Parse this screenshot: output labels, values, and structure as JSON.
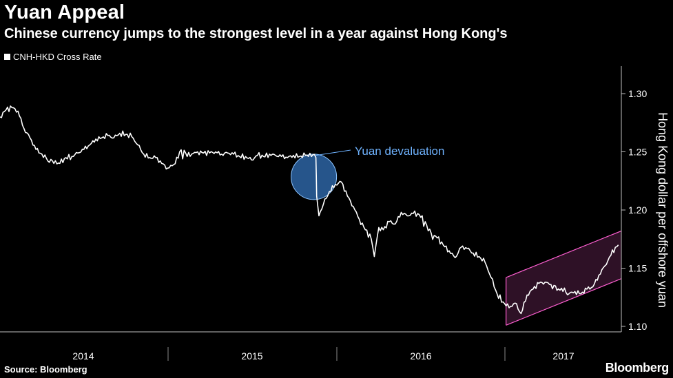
{
  "header": {
    "title": "Yuan Appeal",
    "subtitle": "Chinese currency jumps to the strongest level in a year against Hong Kong's"
  },
  "legend": {
    "label": "CNH-HKD Cross Rate"
  },
  "footer": {
    "source": "Source: Bloomberg",
    "brand": "Bloomberg"
  },
  "chart_data": {
    "type": "line",
    "title": "Yuan Appeal",
    "subtitle": "Chinese currency jumps to the strongest level in a year against Hong Kong's",
    "ylabel": "Hong Kong dollar per offshore yuan",
    "ylim": [
      1.1,
      1.3
    ],
    "yticks": [
      "1.30",
      "1.25",
      "1.20",
      "1.15",
      "1.10"
    ],
    "x_categories": [
      "2014",
      "2015",
      "2016",
      "2017"
    ],
    "xlim": [
      2013.5,
      2017.65
    ],
    "grid": false,
    "legend_position": "top-left",
    "colors": {
      "line": "#ffffff",
      "annotation": "#6fb3ff",
      "channel": "#ff5fd2"
    },
    "series": [
      {
        "name": "CNH-HKD Cross Rate",
        "x": [
          2013.5,
          2013.54,
          2013.58,
          2013.62,
          2013.66,
          2013.7,
          2013.74,
          2013.78,
          2013.82,
          2013.86,
          2013.9,
          2013.94,
          2013.98,
          2014.02,
          2014.06,
          2014.1,
          2014.14,
          2014.18,
          2014.22,
          2014.26,
          2014.3,
          2014.34,
          2014.38,
          2014.42,
          2014.46,
          2014.5,
          2014.54,
          2014.58,
          2014.62,
          2014.66,
          2014.7,
          2014.74,
          2014.78,
          2014.82,
          2014.86,
          2014.9,
          2014.94,
          2014.98,
          2015.02,
          2015.06,
          2015.1,
          2015.14,
          2015.18,
          2015.22,
          2015.26,
          2015.3,
          2015.34,
          2015.38,
          2015.42,
          2015.46,
          2015.5,
          2015.54,
          2015.58,
          2015.61,
          2015.615,
          2015.63,
          2015.66,
          2015.7,
          2015.74,
          2015.78,
          2015.82,
          2015.86,
          2015.9,
          2015.94,
          2015.98,
          2016.0,
          2016.03,
          2016.06,
          2016.1,
          2016.14,
          2016.18,
          2016.22,
          2016.26,
          2016.3,
          2016.34,
          2016.38,
          2016.42,
          2016.46,
          2016.5,
          2016.54,
          2016.58,
          2016.62,
          2016.66,
          2016.7,
          2016.74,
          2016.78,
          2016.82,
          2016.86,
          2016.9,
          2016.94,
          2016.98,
          2017.02,
          2017.06,
          2017.1,
          2017.14,
          2017.18,
          2017.22,
          2017.26,
          2017.3,
          2017.34,
          2017.38,
          2017.42,
          2017.46,
          2017.5,
          2017.54,
          2017.58,
          2017.61,
          2017.63
        ],
        "values": [
          1.28,
          1.286,
          1.288,
          1.285,
          1.27,
          1.262,
          1.252,
          1.248,
          1.242,
          1.24,
          1.24,
          1.245,
          1.246,
          1.249,
          1.252,
          1.256,
          1.261,
          1.262,
          1.264,
          1.262,
          1.266,
          1.265,
          1.263,
          1.256,
          1.248,
          1.245,
          1.245,
          1.24,
          1.236,
          1.239,
          1.25,
          1.249,
          1.248,
          1.25,
          1.249,
          1.249,
          1.25,
          1.248,
          1.249,
          1.248,
          1.246,
          1.246,
          1.243,
          1.247,
          1.246,
          1.248,
          1.247,
          1.246,
          1.245,
          1.247,
          1.246,
          1.247,
          1.246,
          1.245,
          1.212,
          1.195,
          1.205,
          1.216,
          1.222,
          1.224,
          1.212,
          1.203,
          1.192,
          1.183,
          1.175,
          1.16,
          1.185,
          1.183,
          1.19,
          1.188,
          1.198,
          1.195,
          1.197,
          1.196,
          1.19,
          1.18,
          1.176,
          1.17,
          1.165,
          1.159,
          1.168,
          1.167,
          1.163,
          1.16,
          1.155,
          1.142,
          1.128,
          1.121,
          1.116,
          1.12,
          1.111,
          1.127,
          1.132,
          1.137,
          1.138,
          1.136,
          1.131,
          1.13,
          1.128,
          1.13,
          1.128,
          1.132,
          1.134,
          1.144,
          1.152,
          1.161,
          1.168,
          1.17
        ]
      }
    ],
    "annotations": [
      {
        "label": "Yuan devaluation",
        "x": 2015.61,
        "y": 1.247
      }
    ],
    "channel": {
      "x_start": 2016.88,
      "x_end": 2017.65,
      "upper_start": 1.142,
      "upper_end": 1.182,
      "lower_start": 1.101,
      "lower_end": 1.141
    }
  }
}
